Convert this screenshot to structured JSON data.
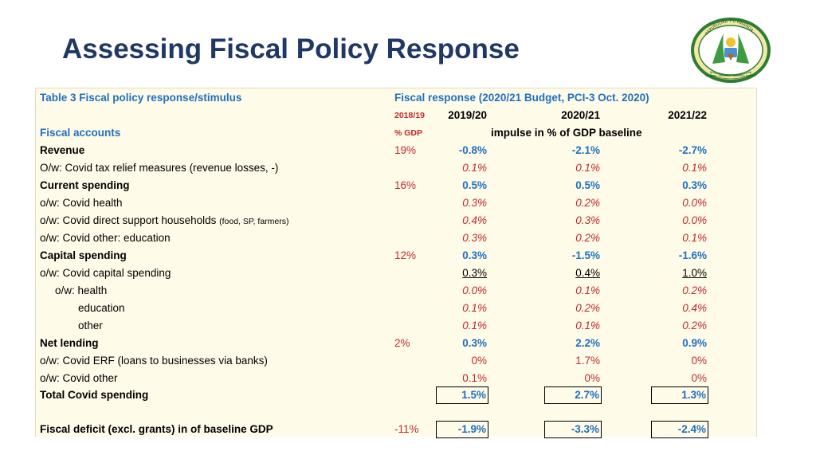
{
  "slide": {
    "title": "Assessing Fiscal Policy Response"
  },
  "emblem": {
    "name": "coat-of-arms",
    "ring_text": "REPUBULIKA Y'U RWANDA",
    "motto": "UBUMWE · UMURIMO · GUKUNDA IGIHUGU"
  },
  "table": {
    "title": "Table 3 Fiscal policy response/stimulus",
    "response_header": "Fiscal response (2020/21 Budget, PCI-3 Oct. 2020)",
    "col_base_year": "2018/19",
    "col_base_unit": "% GDP",
    "col_years": [
      "2019/20",
      "2020/21",
      "2021/22"
    ],
    "impulse_label": "impulse in % of GDP baseline",
    "section_label": "Fiscal accounts",
    "rows": [
      {
        "label": "Revenue",
        "base": "19%",
        "v1": "-0.8%",
        "v2": "-2.1%",
        "v3": "-2.7%"
      },
      {
        "label": "O/w: Covid tax relief measures (revenue losses, -)",
        "base": "",
        "v1": "0.1%",
        "v2": "0.1%",
        "v3": "0.1%"
      },
      {
        "label": "Current spending",
        "base": "16%",
        "v1": "0.5%",
        "v2": "0.5%",
        "v3": "0.3%"
      },
      {
        "label": "o/w: Covid health",
        "base": "",
        "v1": "0.3%",
        "v2": "0.2%",
        "v3": "0.0%"
      },
      {
        "label": "o/w: Covid direct support households",
        "note": "(food, SP, farmers)",
        "base": "",
        "v1": "0.4%",
        "v2": "0.3%",
        "v3": "0.0%"
      },
      {
        "label": "o/w: Covid other: education",
        "base": "",
        "v1": "0.3%",
        "v2": "0.2%",
        "v3": "0.1%"
      },
      {
        "label": "Capital spending",
        "base": "12%",
        "v1": "0.3%",
        "v2": "-1.5%",
        "v3": "-1.6%"
      },
      {
        "label": "o/w: Covid capital spending",
        "base": "",
        "v1": "0.3%",
        "v2": "0.4%",
        "v3": "1.0%"
      },
      {
        "label": "o/w: health",
        "base": "",
        "v1": "0.0%",
        "v2": "0.1%",
        "v3": "0.2%"
      },
      {
        "label": "education",
        "base": "",
        "v1": "0.1%",
        "v2": "0.2%",
        "v3": "0.4%"
      },
      {
        "label": "other",
        "base": "",
        "v1": "0.1%",
        "v2": "0.1%",
        "v3": "0.2%"
      },
      {
        "label": "Net lending",
        "base": "2%",
        "v1": "0.3%",
        "v2": "2.2%",
        "v3": "0.9%"
      },
      {
        "label": "o/w: Covid ERF (loans to businesses via banks)",
        "base": "",
        "v1": "0%",
        "v2": "1.7%",
        "v3": "0%"
      },
      {
        "label": "o/w: Covid other",
        "base": "",
        "v1": "0.1%",
        "v2": "0%",
        "v3": "0%"
      },
      {
        "label": "Total Covid spending",
        "base": "",
        "v1": "1.5%",
        "v2": "2.7%",
        "v3": "1.3%"
      },
      {
        "label": "Fiscal deficit (excl. grants) in of baseline GDP",
        "base": "-11%",
        "v1": "-1.9%",
        "v2": "-3.3%",
        "v3": "-2.4%"
      }
    ]
  },
  "colors": {
    "title": "#1f3864",
    "blue": "#1f70c1",
    "red": "#c0292e",
    "panel": "#fefbe8"
  }
}
